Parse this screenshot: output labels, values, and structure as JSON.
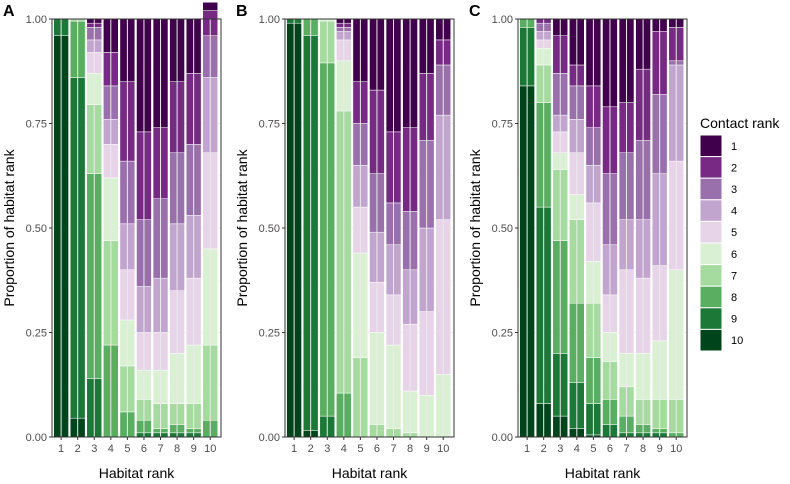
{
  "chart_data": {
    "type": "bar",
    "stacked": true,
    "xlabel": "Habitat rank",
    "ylabel": "Proportion of habitat rank",
    "ylim": [
      0,
      1
    ],
    "yticks": [
      0,
      0.25,
      0.5,
      0.75,
      1
    ],
    "ytick_labels": [
      "0.00",
      "0.25",
      "0.50",
      "0.75",
      "1.00"
    ],
    "categories": [
      "1",
      "2",
      "3",
      "4",
      "5",
      "6",
      "7",
      "8",
      "9",
      "10"
    ],
    "legend": {
      "title": "Contact rank",
      "position": "right",
      "entries": [
        "1",
        "2",
        "3",
        "4",
        "5",
        "6",
        "7",
        "8",
        "9",
        "10"
      ]
    },
    "colors": {
      "1": "#40004b",
      "2": "#762a83",
      "3": "#9970ab",
      "4": "#c2a5cf",
      "5": "#e7d4e8",
      "6": "#d9f0d3",
      "7": "#a6dba0",
      "8": "#5aae61",
      "9": "#1b7837",
      "10": "#00441b"
    },
    "stack_order_bottom_to_top": [
      "10",
      "9",
      "8",
      "7",
      "6",
      "5",
      "4",
      "3",
      "2",
      "1"
    ],
    "panels": [
      {
        "label": "A",
        "bars": [
          {
            "habitat_rank": "1",
            "proportions": {
              "10": 0.96,
              "9": 0.04,
              "8": 0,
              "7": 0,
              "6": 0,
              "5": 0,
              "4": 0,
              "3": 0,
              "2": 0,
              "1": 0
            }
          },
          {
            "habitat_rank": "2",
            "proportions": {
              "10": 0.045,
              "9": 0.815,
              "8": 0.135,
              "7": 0.005,
              "6": 0,
              "5": 0,
              "4": 0,
              "3": 0,
              "2": 0,
              "1": 0
            }
          },
          {
            "habitat_rank": "3",
            "proportions": {
              "10": 0,
              "9": 0.14,
              "8": 0.49,
              "7": 0.165,
              "6": 0.075,
              "5": 0.05,
              "4": 0.03,
              "3": 0.03,
              "2": 0.01,
              "1": 0.01
            }
          },
          {
            "habitat_rank": "4",
            "proportions": {
              "10": 0,
              "9": 0,
              "8": 0.22,
              "7": 0.25,
              "6": 0.15,
              "5": 0.08,
              "4": 0.06,
              "3": 0.08,
              "2": 0.08,
              "1": 0.08
            }
          },
          {
            "habitat_rank": "5",
            "proportions": {
              "10": 0,
              "9": 0,
              "8": 0.06,
              "7": 0.11,
              "6": 0.11,
              "5": 0.12,
              "4": 0.11,
              "3": 0.15,
              "2": 0.19,
              "1": 0.15
            }
          },
          {
            "habitat_rank": "6",
            "proportions": {
              "10": 0,
              "9": 0.01,
              "8": 0.03,
              "7": 0.05,
              "6": 0.07,
              "5": 0.09,
              "4": 0.11,
              "3": 0.16,
              "2": 0.21,
              "1": 0.27
            }
          },
          {
            "habitat_rank": "7",
            "proportions": {
              "10": 0,
              "9": 0.01,
              "8": 0.01,
              "7": 0.06,
              "6": 0.08,
              "5": 0.09,
              "4": 0.13,
              "3": 0.19,
              "2": 0.17,
              "1": 0.26
            }
          },
          {
            "habitat_rank": "8",
            "proportions": {
              "10": 0,
              "9": 0.01,
              "8": 0.02,
              "7": 0.05,
              "6": 0.12,
              "5": 0.15,
              "4": 0.16,
              "3": 0.17,
              "2": 0.17,
              "1": 0.15
            }
          },
          {
            "habitat_rank": "9",
            "proportions": {
              "10": 0,
              "9": 0.01,
              "8": 0.01,
              "7": 0.06,
              "6": 0.14,
              "5": 0.16,
              "4": 0.15,
              "3": 0.17,
              "2": 0.17,
              "1": 0.13
            }
          },
          {
            "habitat_rank": "10",
            "proportions": {
              "10": 0,
              "9": 0,
              "8": 0.04,
              "7": 0.18,
              "6": 0.23,
              "5": 0.23,
              "4": 0.18,
              "3": 0.1,
              "2": 0.06,
              "1": 0.02
            }
          }
        ]
      },
      {
        "label": "B",
        "bars": [
          {
            "habitat_rank": "1",
            "proportions": {
              "10": 0.99,
              "9": 0.01,
              "8": 0,
              "7": 0,
              "6": 0,
              "5": 0,
              "4": 0,
              "3": 0,
              "2": 0,
              "1": 0
            }
          },
          {
            "habitat_rank": "2",
            "proportions": {
              "10": 0.015,
              "9": 0.945,
              "8": 0.04,
              "7": 0,
              "6": 0,
              "5": 0,
              "4": 0,
              "3": 0,
              "2": 0,
              "1": 0
            }
          },
          {
            "habitat_rank": "3",
            "proportions": {
              "10": 0,
              "9": 0.05,
              "8": 0.845,
              "7": 0.1,
              "6": 0.005,
              "5": 0,
              "4": 0,
              "3": 0,
              "2": 0,
              "1": 0
            }
          },
          {
            "habitat_rank": "4",
            "proportions": {
              "10": 0,
              "9": 0,
              "8": 0.105,
              "7": 0.675,
              "6": 0.12,
              "5": 0.05,
              "4": 0.02,
              "3": 0.01,
              "2": 0.01,
              "1": 0.01
            }
          },
          {
            "habitat_rank": "5",
            "proportions": {
              "10": 0,
              "9": 0,
              "8": 0,
              "7": 0.19,
              "6": 0.25,
              "5": 0.11,
              "4": 0.1,
              "3": 0.1,
              "2": 0.1,
              "1": 0.15
            }
          },
          {
            "habitat_rank": "6",
            "proportions": {
              "10": 0,
              "9": 0,
              "8": 0,
              "7": 0.03,
              "6": 0.22,
              "5": 0.12,
              "4": 0.12,
              "3": 0.14,
              "2": 0.2,
              "1": 0.17
            }
          },
          {
            "habitat_rank": "7",
            "proportions": {
              "10": 0,
              "9": 0,
              "8": 0,
              "7": 0.02,
              "6": 0.2,
              "5": 0.12,
              "4": 0.12,
              "3": 0.1,
              "2": 0.17,
              "1": 0.27
            }
          },
          {
            "habitat_rank": "8",
            "proportions": {
              "10": 0,
              "9": 0,
              "8": 0,
              "7": 0.01,
              "6": 0.1,
              "5": 0.16,
              "4": 0.13,
              "3": 0.14,
              "2": 0.2,
              "1": 0.26
            }
          },
          {
            "habitat_rank": "9",
            "proportions": {
              "10": 0,
              "9": 0,
              "8": 0,
              "7": 0,
              "6": 0.1,
              "5": 0.2,
              "4": 0.2,
              "3": 0.21,
              "2": 0.16,
              "1": 0.13
            }
          },
          {
            "habitat_rank": "10",
            "proportions": {
              "10": 0,
              "9": 0,
              "8": 0,
              "7": 0,
              "6": 0.15,
              "5": 0.37,
              "4": 0.25,
              "3": 0.12,
              "2": 0.06,
              "1": 0.05
            }
          }
        ]
      },
      {
        "label": "C",
        "bars": [
          {
            "habitat_rank": "1",
            "proportions": {
              "10": 0.84,
              "9": 0.14,
              "8": 0.02,
              "7": 0,
              "6": 0,
              "5": 0,
              "4": 0,
              "3": 0,
              "2": 0,
              "1": 0
            }
          },
          {
            "habitat_rank": "2",
            "proportions": {
              "10": 0.08,
              "9": 0.47,
              "8": 0.25,
              "7": 0.09,
              "6": 0.04,
              "5": 0.02,
              "4": 0.02,
              "3": 0.02,
              "2": 0.01,
              "1": 0
            }
          },
          {
            "habitat_rank": "3",
            "proportions": {
              "10": 0.05,
              "9": 0.15,
              "8": 0.27,
              "7": 0.17,
              "6": 0.04,
              "5": 0.05,
              "4": 0.04,
              "3": 0.1,
              "2": 0.09,
              "1": 0.04
            }
          },
          {
            "habitat_rank": "4",
            "proportions": {
              "10": 0.02,
              "9": 0.11,
              "8": 0.19,
              "7": 0.2,
              "6": 0.06,
              "5": 0.1,
              "4": 0.08,
              "3": 0.08,
              "2": 0.05,
              "1": 0.11
            }
          },
          {
            "habitat_rank": "5",
            "proportions": {
              "10": 0.005,
              "9": 0.075,
              "8": 0.11,
              "7": 0.13,
              "6": 0.1,
              "5": 0.14,
              "4": 0.09,
              "3": 0.09,
              "2": 0.1,
              "1": 0.16
            }
          },
          {
            "habitat_rank": "6",
            "proportions": {
              "10": 0,
              "9": 0.03,
              "8": 0.06,
              "7": 0.09,
              "6": 0.07,
              "5": 0.09,
              "4": 0.12,
              "3": 0.17,
              "2": 0.16,
              "1": 0.21
            }
          },
          {
            "habitat_rank": "7",
            "proportions": {
              "10": 0,
              "9": 0.01,
              "8": 0.04,
              "7": 0.07,
              "6": 0.08,
              "5": 0.2,
              "4": 0.12,
              "3": 0.16,
              "2": 0.12,
              "1": 0.2
            }
          },
          {
            "habitat_rank": "8",
            "proportions": {
              "10": 0,
              "9": 0.01,
              "8": 0.02,
              "7": 0.06,
              "6": 0.11,
              "5": 0.18,
              "4": 0.14,
              "3": 0.19,
              "2": 0.17,
              "1": 0.12
            }
          },
          {
            "habitat_rank": "9",
            "proportions": {
              "10": 0,
              "9": 0.01,
              "8": 0.01,
              "7": 0.07,
              "6": 0.14,
              "5": 0.18,
              "4": 0.22,
              "3": 0.19,
              "2": 0.15,
              "1": 0.03
            }
          },
          {
            "habitat_rank": "10",
            "proportions": {
              "10": 0,
              "9": 0,
              "8": 0.01,
              "7": 0.08,
              "6": 0.31,
              "5": 0.26,
              "4": 0.23,
              "3": 0.01,
              "2": 0.08,
              "1": 0.02
            }
          }
        ]
      }
    ]
  }
}
